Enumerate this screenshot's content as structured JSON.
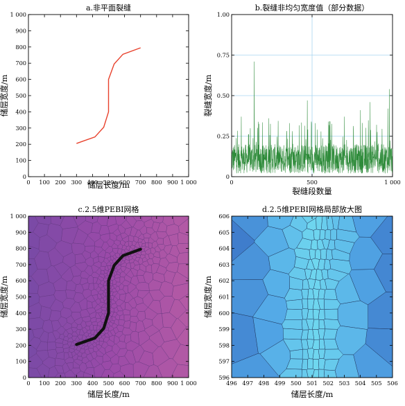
{
  "chart_data": [
    {
      "id": "a",
      "type": "line",
      "title": "a.非平面裂缝",
      "xlabel": "储层长度/m",
      "ylabel": "储层宽度/m",
      "xlim": [
        0,
        1000
      ],
      "ylim": [
        0,
        1000
      ],
      "xticks": [
        "0",
        "100",
        "200",
        "300",
        "400",
        "500",
        "600",
        "700",
        "800",
        "900",
        "1 000"
      ],
      "yticks": [
        "0",
        "100",
        "200",
        "300",
        "400",
        "500",
        "600",
        "700",
        "800",
        "900",
        "1 000"
      ],
      "grid": false,
      "color": "#e8412c",
      "series": [
        {
          "x": [
            300,
            415,
            470,
            500,
            500,
            535,
            590,
            700
          ],
          "y": [
            205,
            245,
            305,
            400,
            600,
            695,
            755,
            795
          ]
        }
      ]
    },
    {
      "id": "b",
      "type": "line",
      "title": "b.裂缝非均匀宽度值（部分数据）",
      "xlabel": "裂缝段数量",
      "ylabel": "裂缝宽度/m",
      "xlim": [
        0,
        1000
      ],
      "ylim": [
        0,
        1.0
      ],
      "xticks": [
        "0",
        "500",
        "1 000"
      ],
      "yticks": [
        "0",
        "0.25",
        "0.50",
        "0.75",
        "1.00"
      ],
      "grid": true,
      "color": "#2e8b3a",
      "n_points": 1000,
      "base_range": [
        0.02,
        0.2
      ],
      "spikes": [
        {
          "x": 140,
          "y": 0.71
        },
        {
          "x": 470,
          "y": 0.47
        },
        {
          "x": 860,
          "y": 0.46
        },
        {
          "x": 980,
          "y": 0.54
        },
        {
          "x": 970,
          "y": 0.42
        },
        {
          "x": 60,
          "y": 0.37
        },
        {
          "x": 230,
          "y": 0.36
        },
        {
          "x": 360,
          "y": 0.33
        },
        {
          "x": 600,
          "y": 0.34
        },
        {
          "x": 700,
          "y": 0.37
        },
        {
          "x": 800,
          "y": 0.41
        },
        {
          "x": 520,
          "y": 0.33
        },
        {
          "x": 900,
          "y": 0.32
        }
      ]
    },
    {
      "id": "c",
      "type": "mesh",
      "title": "c.2.5维PEBI网格",
      "xlabel": "储层长度/m",
      "ylabel": "储层宽度/m",
      "xlim": [
        0,
        1000
      ],
      "ylim": [
        0,
        1000
      ],
      "xticks": [
        "0",
        "100",
        "200",
        "300",
        "400",
        "500",
        "600",
        "700",
        "800",
        "900",
        "1 000"
      ],
      "yticks": [
        "0",
        "100",
        "200",
        "300",
        "400",
        "500",
        "600",
        "700",
        "800",
        "900",
        "1 000"
      ],
      "colors": [
        "#7a4aa6",
        "#9a4aa8",
        "#b35aa5"
      ],
      "fracture_color": "#111111",
      "fracture": {
        "x": [
          300,
          415,
          470,
          500,
          500,
          535,
          590,
          700
        ],
        "y": [
          205,
          245,
          305,
          400,
          600,
          695,
          755,
          795
        ]
      }
    },
    {
      "id": "d",
      "type": "mesh",
      "title": "d.2.5维PEBI网格局部放大图",
      "xlabel": "储层长度/m",
      "ylabel": "储层宽度/m",
      "xlim": [
        496,
        506
      ],
      "ylim": [
        596,
        606
      ],
      "xticks": [
        "496",
        "497",
        "498",
        "499",
        "500",
        "501",
        "502",
        "503",
        "504",
        "505",
        "506"
      ],
      "yticks": [
        "596",
        "597",
        "598",
        "599",
        "600",
        "601",
        "602",
        "603",
        "604",
        "605",
        "606"
      ],
      "colors": [
        "#3d78c9",
        "#52a7e6",
        "#6fd7ef"
      ]
    }
  ]
}
